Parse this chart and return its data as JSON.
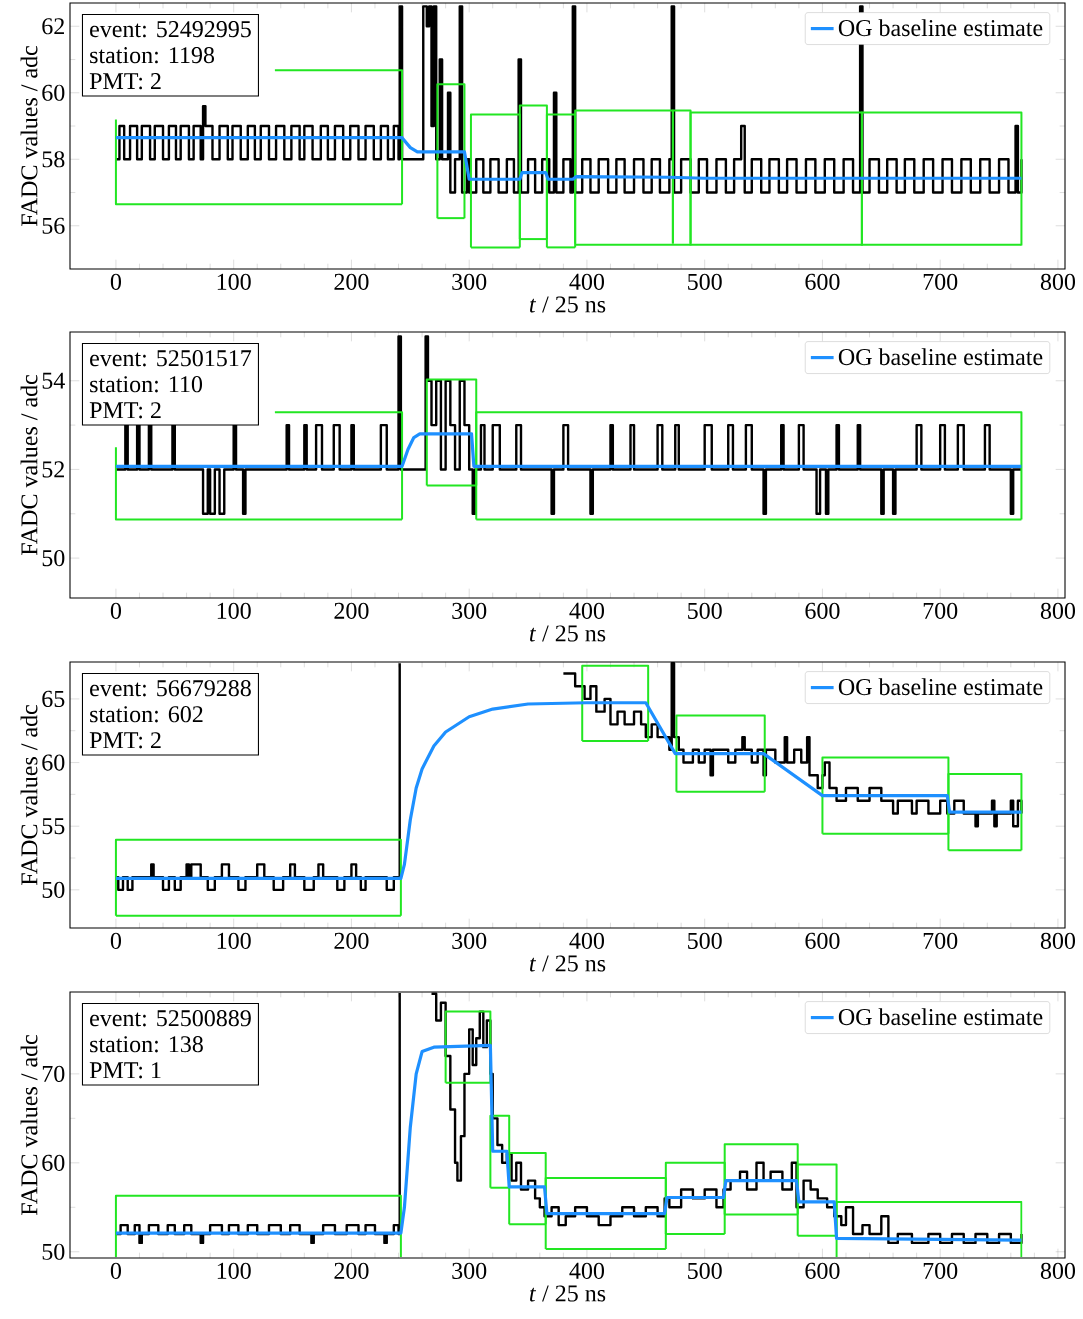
{
  "chart_data": [
    {
      "type": "line",
      "xlabel": "*t* / 25 ns",
      "ylabel": "FADC values / adc",
      "xlim": [
        -39,
        806
      ],
      "ylim": [
        54.7,
        62.7
      ],
      "xticks": [
        0,
        100,
        200,
        300,
        400,
        500,
        600,
        700,
        800
      ],
      "yticks": [
        56,
        58,
        60,
        62
      ],
      "legend": "top right",
      "annotations": [
        "event: 52492995",
        "station: 1198",
        "PMT: 2"
      ],
      "series": [
        {
          "type": "step",
          "color": "#000000",
          "x": [
            0,
            3,
            7,
            12,
            18,
            22,
            29,
            33,
            40,
            45,
            51,
            55,
            62,
            66,
            72,
            74,
            76,
            82,
            88,
            95,
            99,
            106,
            112,
            118,
            123,
            130,
            136,
            143,
            149,
            156,
            160,
            167,
            174,
            180,
            186,
            193,
            199,
            206,
            212,
            219,
            225,
            231,
            236,
            240,
            241,
            243,
            260,
            261,
            264,
            266,
            268,
            270,
            272,
            275,
            277,
            282,
            284,
            288,
            292,
            294,
            298,
            300,
            306,
            312,
            318,
            325,
            332,
            338,
            342,
            344,
            350,
            356,
            362,
            368,
            372,
            374,
            380,
            386,
            388,
            390,
            396,
            403,
            410,
            418,
            425,
            432,
            440,
            448,
            455,
            462,
            470,
            472,
            474,
            480,
            488,
            495,
            502,
            510,
            518,
            525,
            531,
            534,
            540,
            548,
            555,
            563,
            570,
            578,
            586,
            594,
            602,
            610,
            618,
            626,
            632,
            634,
            640,
            648,
            655,
            663,
            670,
            678,
            686,
            694,
            702,
            710,
            718,
            726,
            734,
            742,
            750,
            758,
            764,
            766,
            769
          ],
          "values": [
            58,
            59,
            58,
            59,
            58,
            59,
            58,
            59,
            58,
            59,
            58,
            59,
            58,
            59,
            58,
            59.6,
            59,
            58,
            59,
            58,
            59,
            58,
            59,
            58,
            59,
            58,
            59,
            58,
            59,
            58,
            59,
            58,
            59,
            58,
            59,
            58,
            59,
            58,
            59,
            58,
            59,
            58,
            59,
            58,
            62.6,
            58,
            58,
            62.6,
            62,
            62.6,
            59,
            62.6,
            58,
            61,
            58,
            60,
            57,
            58,
            62.6,
            57,
            58,
            57,
            58,
            57,
            58,
            57,
            58,
            57,
            61,
            57,
            58,
            57,
            58,
            57,
            60,
            57,
            58,
            57,
            62.6,
            57,
            58,
            57,
            58,
            57,
            58,
            57,
            58,
            57,
            58,
            57,
            58,
            62.6,
            57,
            58,
            57,
            58,
            57,
            58,
            57,
            58,
            59,
            57,
            58,
            57,
            58,
            57,
            58,
            57,
            58,
            57,
            58,
            57,
            58,
            57,
            62.6,
            57,
            58,
            57,
            58,
            57,
            58,
            57,
            58,
            57,
            58,
            57,
            58,
            57,
            58,
            57,
            58,
            57,
            59,
            57,
            58
          ]
        },
        {
          "color": "#22e622",
          "x": [
            0,
            0,
            243
          ],
          "values": [
            59.2,
            56.65,
            56.65
          ]
        },
        {
          "color": "#22e622",
          "x": [
            135,
            243,
            243
          ],
          "values": [
            60.68,
            60.68,
            56.65
          ]
        },
        {
          "color": "#22e622",
          "x": [
            273,
            273,
            296,
            296
          ],
          "values": [
            56.23,
            60.26,
            60.26,
            56.23
          ]
        },
        {
          "color": "#22e622",
          "x": [
            273,
            296
          ],
          "values": [
            56.23,
            56.23
          ]
        },
        {
          "color": "#22e622",
          "x": [
            301.5,
            301.5,
            343,
            343
          ],
          "values": [
            55.35,
            59.35,
            59.35,
            55.35
          ]
        },
        {
          "color": "#22e622",
          "x": [
            301.5,
            343
          ],
          "values": [
            55.35,
            55.35
          ]
        },
        {
          "color": "#22e622",
          "x": [
            343,
            343,
            366,
            366
          ],
          "values": [
            55.6,
            59.62,
            59.62,
            55.6
          ]
        },
        {
          "color": "#22e622",
          "x": [
            343,
            366
          ],
          "values": [
            55.6,
            55.6
          ]
        },
        {
          "color": "#22e622",
          "x": [
            366,
            366,
            390,
            390
          ],
          "values": [
            55.35,
            59.35,
            59.35,
            55.35
          ]
        },
        {
          "color": "#22e622",
          "x": [
            366,
            390
          ],
          "values": [
            55.35,
            55.35
          ]
        },
        {
          "color": "#22e622",
          "x": [
            390,
            390,
            473,
            473
          ],
          "values": [
            55.47,
            59.47,
            59.47,
            55.47
          ]
        },
        {
          "color": "#22e622",
          "x": [
            390,
            769
          ],
          "values": [
            55.43,
            55.43
          ]
        },
        {
          "color": "#22e622",
          "x": [
            473,
            473,
            488,
            488
          ],
          "values": [
            55.47,
            59.47,
            59.47,
            55.47
          ]
        },
        {
          "color": "#22e622",
          "x": [
            488,
            488,
            633.5,
            633.5
          ],
          "values": [
            55.41,
            59.41,
            59.41,
            55.41
          ]
        },
        {
          "color": "#22e622",
          "x": [
            633.5,
            633.5,
            769,
            769
          ],
          "values": [
            55.41,
            59.41,
            59.41,
            55.41
          ]
        },
        {
          "name": "OG baseline estimate",
          "color": "#1e90ff",
          "x": [
            0,
            243,
            250,
            256,
            296,
            300,
            343,
            345,
            365,
            367,
            388,
            391,
            470,
            500,
            769
          ],
          "values": [
            58.65,
            58.65,
            58.35,
            58.22,
            58.22,
            57.4,
            57.4,
            57.6,
            57.6,
            57.4,
            57.4,
            57.48,
            57.46,
            57.43,
            57.43
          ]
        }
      ]
    },
    {
      "type": "line",
      "xlabel": "*t* / 25 ns",
      "ylabel": "FADC values / adc",
      "xlim": [
        -39,
        806
      ],
      "ylim": [
        49.1,
        55.1
      ],
      "xticks": [
        0,
        100,
        200,
        300,
        400,
        500,
        600,
        700,
        800
      ],
      "yticks": [
        50,
        52,
        54
      ],
      "legend": "top right",
      "annotations": [
        "event: 52501517",
        "station: 110",
        "PMT: 2"
      ],
      "series": [
        {
          "type": "step",
          "color": "#000000",
          "x": [
            0,
            8,
            10,
            18,
            20,
            28,
            30,
            48,
            50,
            74,
            78,
            80,
            84,
            88,
            92,
            100,
            102,
            108,
            110,
            145,
            147,
            160,
            162,
            170,
            175,
            185,
            190,
            200,
            202,
            225,
            230,
            240,
            242,
            263,
            265,
            268,
            272,
            276,
            280,
            284,
            288,
            292,
            296,
            300,
            303,
            305,
            310,
            313,
            320,
            326,
            340,
            344,
            370,
            372,
            380,
            384,
            403,
            405,
            420,
            422,
            437,
            440,
            460,
            464,
            475,
            478,
            500,
            506,
            520,
            524,
            535,
            540,
            550,
            552,
            565,
            567,
            580,
            584,
            595,
            598,
            603,
            605,
            612,
            614,
            630,
            632,
            650,
            652,
            660,
            662,
            680,
            684,
            700,
            704,
            715,
            720,
            738,
            742,
            760,
            762,
            769
          ],
          "values": [
            52,
            53,
            52,
            53,
            52,
            53,
            52,
            53,
            52,
            51,
            52,
            51,
            52,
            51,
            52,
            53,
            52,
            51,
            52,
            53,
            52,
            53,
            52,
            53,
            52,
            53,
            52,
            53,
            52,
            53,
            52,
            55.0,
            52,
            55.0,
            54,
            53,
            54,
            52,
            54,
            53,
            52,
            54,
            53,
            52,
            51,
            52,
            53,
            52,
            53,
            52,
            53,
            52,
            51,
            52,
            53,
            52,
            51,
            52,
            53,
            52,
            53,
            52,
            53,
            52,
            53,
            52,
            53,
            52,
            53,
            52,
            53,
            52,
            51,
            52,
            53,
            52,
            53,
            52,
            51,
            52,
            51,
            52,
            53,
            52,
            53,
            52,
            51,
            52,
            51,
            52,
            53,
            52,
            53,
            52,
            53,
            52,
            53,
            52,
            51,
            52,
            52
          ]
        },
        {
          "color": "#22e622",
          "x": [
            0,
            0,
            243
          ],
          "values": [
            52.5,
            50.87,
            50.87
          ]
        },
        {
          "color": "#22e622",
          "x": [
            135,
            243,
            243
          ],
          "values": [
            53.29,
            53.29,
            50.87
          ]
        },
        {
          "color": "#22e622",
          "x": [
            264,
            264,
            306,
            306
          ],
          "values": [
            51.64,
            54.03,
            54.03,
            51.64
          ]
        },
        {
          "color": "#22e622",
          "x": [
            264,
            306
          ],
          "values": [
            51.64,
            51.64
          ]
        },
        {
          "color": "#22e622",
          "x": [
            306,
            306,
            769,
            769
          ],
          "values": [
            50.87,
            53.29,
            53.29,
            50.87
          ]
        },
        {
          "color": "#22e622",
          "x": [
            306,
            769
          ],
          "values": [
            50.87,
            50.87
          ]
        },
        {
          "name": "OG baseline estimate",
          "color": "#1e90ff",
          "x": [
            0,
            243,
            248,
            253,
            258,
            302,
            304,
            769
          ],
          "values": [
            52.07,
            52.07,
            52.45,
            52.72,
            52.8,
            52.8,
            52.07,
            52.07
          ]
        }
      ]
    },
    {
      "type": "line",
      "xlabel": "*t* / 25 ns",
      "ylabel": "FADC values / adc",
      "xlim": [
        -39,
        806
      ],
      "ylim": [
        47,
        67.9
      ],
      "xticks": [
        0,
        100,
        200,
        300,
        400,
        500,
        600,
        700,
        800
      ],
      "yticks": [
        50,
        55,
        60,
        65
      ],
      "legend": "top right",
      "annotations": [
        "event: 56679288",
        "station: 602",
        "PMT: 2"
      ],
      "series": [
        {
          "type": "step",
          "color": "#000000",
          "x": [
            0,
            2,
            6,
            10,
            14,
            30,
            32,
            40,
            45,
            50,
            55,
            60,
            62,
            64,
            72,
            78,
            84,
            90,
            96,
            104,
            110,
            120,
            126,
            134,
            142,
            148,
            152,
            160,
            168,
            172,
            176,
            188,
            194,
            200,
            204,
            208,
            212,
            230,
            236,
            241,
            242,
            380,
            390,
            398,
            403,
            408,
            415,
            420,
            426,
            432,
            440,
            446,
            450,
            455,
            460,
            470,
            472,
            474,
            478,
            482,
            490,
            495,
            500,
            505,
            507,
            520,
            526,
            532,
            534,
            540,
            545,
            550,
            552,
            560,
            568,
            570,
            576,
            582,
            587,
            589,
            596,
            600,
            602,
            606,
            612,
            620,
            630,
            640,
            650,
            660,
            664,
            676,
            680,
            690,
            700,
            706,
            712,
            720,
            730,
            732,
            744,
            746,
            748,
            760,
            762,
            766,
            769
          ],
          "values": [
            51,
            50,
            51,
            50,
            51,
            52,
            51,
            50,
            51,
            50,
            51,
            52,
            51,
            52,
            51,
            50,
            51,
            52,
            51,
            50,
            51,
            52,
            51,
            50,
            51,
            52,
            51,
            50,
            51,
            52,
            51,
            50,
            51,
            52,
            51,
            50,
            51,
            50,
            51,
            67.8,
            null,
            67,
            66,
            65,
            66,
            64,
            65,
            63,
            64,
            63,
            64,
            63,
            62,
            63,
            62,
            61,
            67.8,
            62,
            61,
            60,
            61,
            60,
            61,
            59,
            61,
            60,
            61,
            62,
            61,
            60,
            61,
            59,
            61,
            60,
            62,
            60,
            61,
            60,
            62,
            59,
            58,
            59,
            60,
            58,
            57,
            58,
            57,
            58,
            57,
            56,
            57,
            56,
            57,
            56,
            57,
            56,
            57,
            56,
            55,
            56,
            57,
            55,
            56,
            57,
            55,
            57,
            56
          ]
        },
        {
          "color": "#22e622",
          "x": [
            0,
            0,
            242,
            242
          ],
          "values": [
            47.96,
            53.93,
            53.93,
            47.96
          ]
        },
        {
          "color": "#22e622",
          "x": [
            0,
            242
          ],
          "values": [
            47.96,
            47.96
          ]
        },
        {
          "color": "#22e622",
          "x": [
            396,
            396,
            452,
            452
          ],
          "values": [
            61.7,
            67.6,
            67.6,
            61.7
          ]
        },
        {
          "color": "#22e622",
          "x": [
            396,
            452
          ],
          "values": [
            61.7,
            61.7
          ]
        },
        {
          "color": "#22e622",
          "x": [
            476,
            476,
            551,
            551
          ],
          "values": [
            57.7,
            63.7,
            63.7,
            57.7
          ]
        },
        {
          "color": "#22e622",
          "x": [
            476,
            551
          ],
          "values": [
            57.7,
            57.7
          ]
        },
        {
          "color": "#22e622",
          "x": [
            600,
            600,
            707,
            707
          ],
          "values": [
            54.4,
            60.4,
            60.4,
            54.4
          ]
        },
        {
          "color": "#22e622",
          "x": [
            600,
            707
          ],
          "values": [
            54.4,
            54.4
          ]
        },
        {
          "color": "#22e622",
          "x": [
            707,
            707,
            769,
            769
          ],
          "values": [
            53.1,
            59.1,
            59.1,
            53.1
          ]
        },
        {
          "color": "#22e622",
          "x": [
            707,
            769
          ],
          "values": [
            53.1,
            53.1
          ]
        },
        {
          "name": "OG baseline estimate",
          "color": "#1e90ff",
          "x": [
            0,
            242,
            245,
            250,
            255,
            260,
            270,
            280,
            300,
            320,
            350,
            400,
            450,
            475,
            550,
            600,
            706,
            708,
            769
          ],
          "values": [
            50.9,
            50.9,
            52,
            55.5,
            58,
            59.5,
            61.3,
            62.4,
            63.6,
            64.2,
            64.6,
            64.7,
            64.7,
            60.7,
            60.7,
            57.4,
            57.4,
            56.1,
            56.1
          ]
        }
      ]
    },
    {
      "type": "line",
      "xlabel": "*t* / 25 ns",
      "ylabel": "FADC values / adc",
      "xlim": [
        -39,
        806
      ],
      "ylim": [
        49.3,
        79.2
      ],
      "xticks": [
        0,
        100,
        200,
        300,
        400,
        500,
        600,
        700,
        800
      ],
      "yticks": [
        50,
        60,
        70
      ],
      "legend": "top right",
      "annotations": [
        "event: 52500889",
        "station: 138",
        "PMT: 1"
      ],
      "series": [
        {
          "type": "step",
          "color": "#000000",
          "x": [
            0,
            4,
            10,
            16,
            20,
            22,
            28,
            36,
            44,
            50,
            58,
            64,
            72,
            74,
            80,
            90,
            96,
            104,
            112,
            120,
            130,
            140,
            148,
            156,
            166,
            168,
            176,
            186,
            196,
            206,
            212,
            220,
            228,
            230,
            236,
            240,
            241,
            243,
            268,
            272,
            276,
            280,
            284,
            288,
            290,
            293,
            296,
            300,
            303,
            306,
            309,
            312,
            315,
            318,
            320,
            324,
            328,
            332,
            336,
            340,
            344,
            350,
            356,
            360,
            364,
            370,
            376,
            382,
            390,
            400,
            410,
            420,
            430,
            440,
            450,
            460,
            466,
            470,
            480,
            490,
            500,
            510,
            516,
            522,
            530,
            536,
            544,
            550,
            556,
            566,
            574,
            578,
            584,
            590,
            596,
            604,
            610,
            616,
            620,
            626,
            634,
            640,
            650,
            656,
            664,
            676,
            690,
            700,
            710,
            720,
            730,
            740,
            750,
            760,
            769
          ],
          "values": [
            52,
            53,
            52,
            53,
            51,
            52,
            53,
            52,
            53,
            52,
            53,
            52,
            51,
            52,
            53,
            52,
            53,
            52,
            53,
            52,
            53,
            52,
            53,
            52,
            51,
            52,
            53,
            52,
            53,
            52,
            53,
            52,
            51,
            52,
            53,
            52,
            79.1,
            null,
            79,
            76,
            78,
            72,
            66,
            60,
            58,
            63,
            70,
            75,
            71,
            74,
            77,
            73,
            76,
            70,
            65,
            62,
            60,
            61,
            58,
            60,
            57,
            58,
            56,
            55,
            54,
            55,
            53,
            54,
            55,
            54,
            53,
            54,
            55,
            54,
            55,
            54,
            56,
            55,
            57,
            56,
            57,
            55,
            57,
            58,
            59,
            57,
            60,
            58,
            59,
            57,
            60,
            55,
            58,
            57,
            56,
            55,
            54,
            53,
            55,
            52,
            53,
            52,
            54,
            51,
            52,
            51,
            52,
            51,
            52,
            51,
            52,
            51,
            52,
            51,
            52
          ]
        },
        {
          "color": "#22e622",
          "x": [
            0,
            0,
            242,
            242
          ],
          "values": [
            49.4,
            56.3,
            56.3,
            49.4
          ]
        },
        {
          "color": "#22e622",
          "x": [
            280,
            280,
            318,
            318
          ],
          "values": [
            69.0,
            77.0,
            77.0,
            69.0
          ]
        },
        {
          "color": "#22e622",
          "x": [
            280,
            318
          ],
          "values": [
            69.0,
            69.0
          ]
        },
        {
          "color": "#22e622",
          "x": [
            318,
            318,
            334,
            334
          ],
          "values": [
            57.2,
            65.3,
            65.3,
            57.2
          ]
        },
        {
          "color": "#22e622",
          "x": [
            318,
            334
          ],
          "values": [
            57.2,
            57.2
          ]
        },
        {
          "color": "#22e622",
          "x": [
            334,
            334,
            365,
            365
          ],
          "values": [
            53.1,
            61.1,
            61.1,
            53.1
          ]
        },
        {
          "color": "#22e622",
          "x": [
            334,
            365
          ],
          "values": [
            53.1,
            53.1
          ]
        },
        {
          "color": "#22e622",
          "x": [
            365,
            365,
            467,
            467
          ],
          "values": [
            50.3,
            58.3,
            58.3,
            50.3
          ]
        },
        {
          "color": "#22e622",
          "x": [
            365,
            467
          ],
          "values": [
            50.3,
            50.3
          ]
        },
        {
          "color": "#22e622",
          "x": [
            467,
            467,
            517,
            517
          ],
          "values": [
            52.0,
            60.0,
            60.0,
            52.0
          ]
        },
        {
          "color": "#22e622",
          "x": [
            467,
            517
          ],
          "values": [
            52.0,
            52.0
          ]
        },
        {
          "color": "#22e622",
          "x": [
            517,
            517,
            579,
            579
          ],
          "values": [
            54.2,
            62.1,
            62.1,
            54.2
          ]
        },
        {
          "color": "#22e622",
          "x": [
            517,
            579
          ],
          "values": [
            54.2,
            54.2
          ]
        },
        {
          "color": "#22e622",
          "x": [
            579,
            579,
            612,
            612
          ],
          "values": [
            51.8,
            59.8,
            59.8,
            51.8
          ]
        },
        {
          "color": "#22e622",
          "x": [
            579,
            612
          ],
          "values": [
            51.8,
            51.8
          ]
        },
        {
          "color": "#22e622",
          "x": [
            612,
            612,
            769,
            769
          ],
          "values": [
            49.4,
            55.6,
            55.6,
            49.4
          ]
        },
        {
          "name": "OG baseline estimate",
          "color": "#1e90ff",
          "x": [
            0,
            242,
            245,
            250,
            255,
            260,
            270,
            318,
            320,
            332,
            334,
            364,
            366,
            466,
            468,
            516,
            518,
            578,
            580,
            610,
            612,
            769
          ],
          "values": [
            52.1,
            52.1,
            55,
            64,
            70,
            72.5,
            73,
            73.2,
            61.3,
            61.3,
            57.3,
            57.3,
            54.3,
            54.3,
            56.1,
            56.1,
            58.0,
            58.0,
            55.6,
            55.6,
            51.5,
            51.3
          ]
        }
      ]
    }
  ]
}
